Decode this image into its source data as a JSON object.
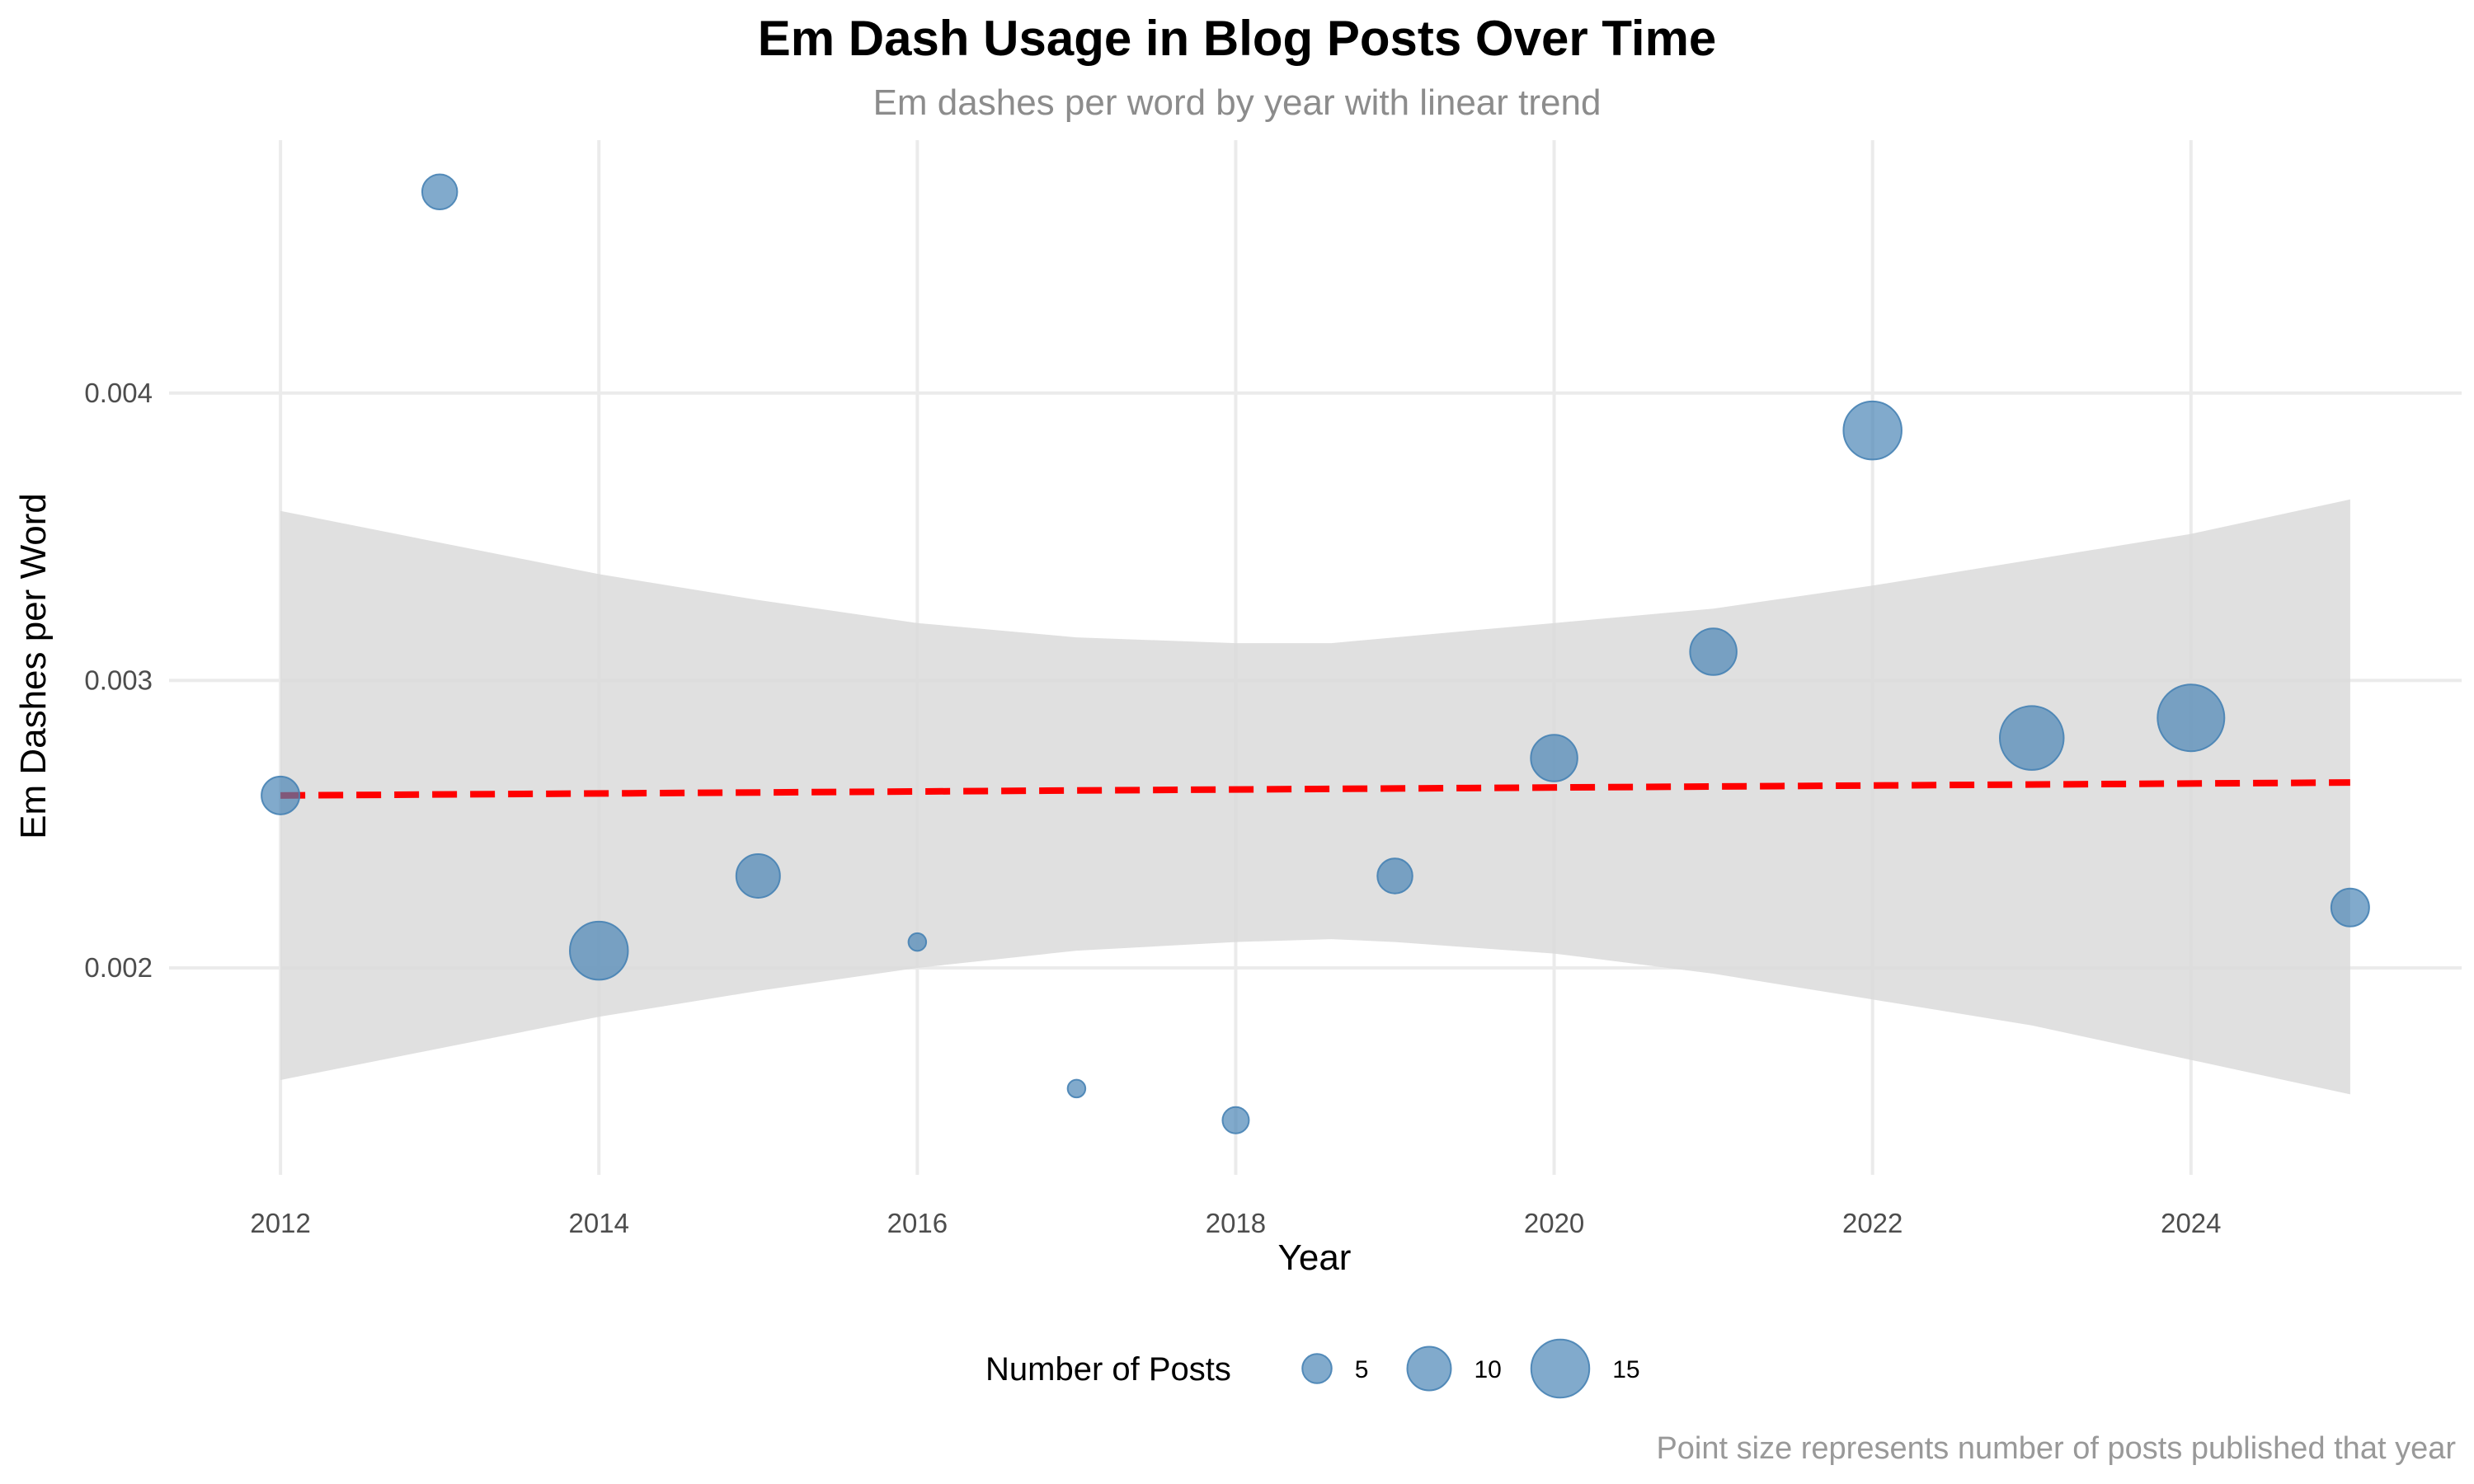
{
  "title": "Em Dash Usage in Blog Posts Over Time",
  "subtitle": "Em dashes per word by year with linear trend",
  "caption": "Point size represents number of posts published that year",
  "chart_data": {
    "type": "scatter",
    "xlabel": "Year",
    "ylabel": "Em Dashes per Word",
    "xlim": [
      2011.3,
      2025.7
    ],
    "ylim": [
      0.00128,
      0.00488
    ],
    "x_ticks": [
      2012,
      2014,
      2016,
      2018,
      2020,
      2022,
      2024
    ],
    "x_tick_labels": [
      "2012",
      "2014",
      "2016",
      "2018",
      "2020",
      "2022",
      "2024"
    ],
    "y_ticks": [
      0.002,
      0.003,
      0.004
    ],
    "y_tick_labels": [
      "0.002",
      "0.003",
      "0.004"
    ],
    "grid": true,
    "legend_placement": "bottom",
    "size_legend": {
      "title": "Number of Posts",
      "values": [
        5,
        10,
        15
      ],
      "labels": [
        "5",
        "10",
        "15"
      ]
    },
    "colors": {
      "points": "#4682b4",
      "trend": "#ff0000",
      "ribbon": "#d9d9d9"
    },
    "points": [
      {
        "x": 2012,
        "y": 0.0026,
        "posts": 8
      },
      {
        "x": 2013,
        "y": 0.0047,
        "posts": 7
      },
      {
        "x": 2014,
        "y": 0.00206,
        "posts": 15
      },
      {
        "x": 2015,
        "y": 0.00232,
        "posts": 10
      },
      {
        "x": 2016,
        "y": 0.00209,
        "posts": 1
      },
      {
        "x": 2017,
        "y": 0.00158,
        "posts": 1
      },
      {
        "x": 2018,
        "y": 0.00147,
        "posts": 4
      },
      {
        "x": 2019,
        "y": 0.00232,
        "posts": 7
      },
      {
        "x": 2020,
        "y": 0.00273,
        "posts": 11
      },
      {
        "x": 2021,
        "y": 0.0031,
        "posts": 11
      },
      {
        "x": 2022,
        "y": 0.00387,
        "posts": 15
      },
      {
        "x": 2023,
        "y": 0.0028,
        "posts": 17
      },
      {
        "x": 2024,
        "y": 0.00287,
        "posts": 18
      },
      {
        "x": 2025,
        "y": 0.00221,
        "posts": 8
      }
    ],
    "trend": {
      "type": "linear",
      "x": [
        2012,
        2025
      ],
      "y": [
        0.0026,
        0.002645
      ]
    },
    "confidence_band": {
      "x": [
        2012,
        2013,
        2014,
        2015,
        2016,
        2017,
        2018,
        2018.6,
        2019,
        2020,
        2021,
        2022,
        2023,
        2024,
        2025
      ],
      "lower": [
        0.00161,
        0.00172,
        0.00183,
        0.00192,
        0.002,
        0.00206,
        0.00209,
        0.0021,
        0.00209,
        0.00205,
        0.00198,
        0.00189,
        0.0018,
        0.00168,
        0.00156
      ],
      "upper": [
        0.00359,
        0.00348,
        0.00337,
        0.00328,
        0.0032,
        0.00315,
        0.00313,
        0.00313,
        0.00315,
        0.0032,
        0.00325,
        0.00333,
        0.00342,
        0.00351,
        0.00363
      ]
    }
  }
}
